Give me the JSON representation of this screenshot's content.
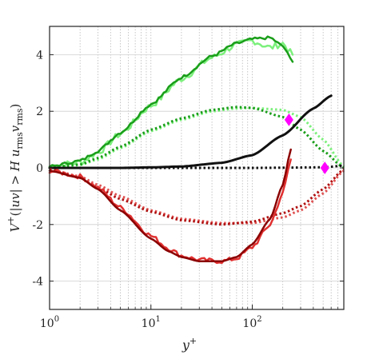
{
  "chart_data": {
    "type": "line",
    "xlabel_base": "y",
    "xlabel_sup": "+",
    "ylabel_parts": {
      "v": "V",
      "vsup": "+",
      "open": "(|",
      "uv": "uv",
      "gt": "| > ",
      "H": "H",
      "u": " u",
      "rms1": "rms",
      "v2": "v",
      "rms2": "rms",
      "close": ")"
    },
    "xscale": "log",
    "xlim": [
      1,
      800
    ],
    "ylim": [
      -5,
      5
    ],
    "x_ticks": [
      {
        "base": "10",
        "exp": "0",
        "value": 1
      },
      {
        "base": "10",
        "exp": "1",
        "value": 10
      },
      {
        "base": "10",
        "exp": "2",
        "value": 100
      }
    ],
    "y_ticks": [
      {
        "label": "-4",
        "value": -4
      },
      {
        "label": "-2",
        "value": -2
      },
      {
        "label": "0",
        "value": 0
      },
      {
        "label": "2",
        "value": 2
      },
      {
        "label": "4",
        "value": 4
      }
    ],
    "grid": "on",
    "series": [
      {
        "color": "#7cf07c",
        "style": "solid",
        "width": 2.5,
        "noise": 0.12,
        "points": [
          [
            1,
            0.05
          ],
          [
            2,
            0.2
          ],
          [
            3,
            0.55
          ],
          [
            5,
            1.2
          ],
          [
            10,
            2.2
          ],
          [
            20,
            3.15
          ],
          [
            40,
            3.9
          ],
          [
            70,
            4.35
          ],
          [
            100,
            4.5
          ],
          [
            150,
            4.25
          ],
          [
            200,
            4.4
          ],
          [
            250,
            4.0
          ]
        ]
      },
      {
        "color": "#1a9e1a",
        "style": "solid",
        "width": 2.5,
        "noise": 0.05,
        "points": [
          [
            1,
            0.05
          ],
          [
            2,
            0.25
          ],
          [
            3,
            0.6
          ],
          [
            5,
            1.25
          ],
          [
            10,
            2.25
          ],
          [
            20,
            3.2
          ],
          [
            40,
            3.95
          ],
          [
            70,
            4.4
          ],
          [
            100,
            4.55
          ],
          [
            150,
            4.6
          ],
          [
            200,
            4.3
          ],
          [
            250,
            3.75
          ]
        ]
      },
      {
        "color": "#7cf07c",
        "style": "dotted",
        "width": 3,
        "noise": 0.0,
        "points": [
          [
            1,
            0.02
          ],
          [
            2,
            0.1
          ],
          [
            3,
            0.3
          ],
          [
            5,
            0.7
          ],
          [
            10,
            1.3
          ],
          [
            20,
            1.7
          ],
          [
            40,
            2.0
          ],
          [
            70,
            2.1
          ],
          [
            100,
            2.12
          ],
          [
            200,
            2.05
          ],
          [
            300,
            1.8
          ],
          [
            500,
            1.0
          ],
          [
            800,
            0.05
          ]
        ]
      },
      {
        "color": "#1a9e1a",
        "style": "dotted",
        "width": 3,
        "noise": 0.0,
        "points": [
          [
            1,
            0.02
          ],
          [
            2,
            0.12
          ],
          [
            3,
            0.35
          ],
          [
            5,
            0.75
          ],
          [
            10,
            1.35
          ],
          [
            20,
            1.75
          ],
          [
            40,
            2.05
          ],
          [
            70,
            2.15
          ],
          [
            100,
            2.12
          ],
          [
            200,
            1.8
          ],
          [
            300,
            1.35
          ],
          [
            500,
            0.6
          ],
          [
            800,
            0.0
          ]
        ]
      },
      {
        "color": "#111111",
        "style": "solid",
        "width": 3,
        "noise": 0.0,
        "points": [
          [
            1,
            0
          ],
          [
            5,
            0
          ],
          [
            10,
            0.02
          ],
          [
            20,
            0.05
          ],
          [
            50,
            0.18
          ],
          [
            100,
            0.45
          ],
          [
            200,
            1.15
          ],
          [
            400,
            2.1
          ],
          [
            600,
            2.55
          ]
        ]
      },
      {
        "color": "#111111",
        "style": "dotted",
        "width": 3,
        "noise": 0.0,
        "points": [
          [
            1,
            0
          ],
          [
            10,
            0
          ],
          [
            100,
            0
          ],
          [
            500,
            0.02
          ],
          [
            800,
            0.08
          ]
        ]
      },
      {
        "color": "#e05050",
        "style": "dotted",
        "width": 3,
        "noise": 0.0,
        "points": [
          [
            1,
            -0.05
          ],
          [
            2,
            -0.3
          ],
          [
            3,
            -0.6
          ],
          [
            5,
            -1.0
          ],
          [
            10,
            -1.5
          ],
          [
            20,
            -1.8
          ],
          [
            50,
            -1.95
          ],
          [
            100,
            -1.95
          ],
          [
            200,
            -1.75
          ],
          [
            300,
            -1.5
          ],
          [
            500,
            -0.9
          ],
          [
            800,
            -0.1
          ]
        ]
      },
      {
        "color": "#b01010",
        "style": "dotted",
        "width": 3,
        "noise": 0.0,
        "points": [
          [
            1,
            -0.05
          ],
          [
            2,
            -0.35
          ],
          [
            3,
            -0.7
          ],
          [
            5,
            -1.1
          ],
          [
            10,
            -1.55
          ],
          [
            20,
            -1.85
          ],
          [
            50,
            -2.0
          ],
          [
            100,
            -1.9
          ],
          [
            200,
            -1.6
          ],
          [
            300,
            -1.35
          ],
          [
            500,
            -0.75
          ],
          [
            800,
            -0.05
          ]
        ]
      },
      {
        "color": "#e03030",
        "style": "solid",
        "width": 2.5,
        "noise": 0.08,
        "points": [
          [
            1,
            -0.1
          ],
          [
            2,
            -0.3
          ],
          [
            3,
            -0.7
          ],
          [
            5,
            -1.4
          ],
          [
            10,
            -2.4
          ],
          [
            15,
            -2.85
          ],
          [
            20,
            -3.1
          ],
          [
            30,
            -3.25
          ],
          [
            50,
            -3.3
          ],
          [
            70,
            -3.2
          ],
          [
            100,
            -2.8
          ],
          [
            150,
            -2.0
          ],
          [
            200,
            -0.9
          ],
          [
            240,
            0.3
          ]
        ]
      },
      {
        "color": "#8b0000",
        "style": "solid",
        "width": 2.5,
        "noise": 0.0,
        "points": [
          [
            1,
            -0.1
          ],
          [
            2,
            -0.35
          ],
          [
            3,
            -0.75
          ],
          [
            5,
            -1.5
          ],
          [
            10,
            -2.5
          ],
          [
            15,
            -2.95
          ],
          [
            20,
            -3.15
          ],
          [
            30,
            -3.3
          ],
          [
            50,
            -3.3
          ],
          [
            70,
            -3.15
          ],
          [
            100,
            -2.7
          ],
          [
            150,
            -1.8
          ],
          [
            200,
            -0.6
          ],
          [
            240,
            0.65
          ]
        ]
      }
    ],
    "markers": [
      {
        "x": 230,
        "y": 1.7,
        "color": "#ff00ff",
        "shape": "diamond"
      },
      {
        "x": 520,
        "y": 0.0,
        "color": "#ff00ff",
        "shape": "diamond"
      }
    ]
  }
}
